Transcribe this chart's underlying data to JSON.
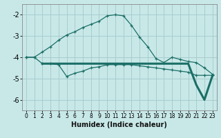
{
  "xlabel": "Humidex (Indice chaleur)",
  "background_color": "#c8e8e8",
  "grid_color": "#a8cccc",
  "line_color": "#1a6e66",
  "x": [
    0,
    1,
    2,
    3,
    4,
    5,
    6,
    7,
    8,
    9,
    10,
    11,
    12,
    13,
    14,
    15,
    16,
    17,
    18,
    19,
    20,
    21,
    22,
    23
  ],
  "line1": [
    -4.0,
    -4.0,
    -3.75,
    -3.5,
    -3.2,
    -2.95,
    -2.8,
    -2.6,
    -2.45,
    -2.3,
    -2.05,
    -2.0,
    -2.05,
    -2.5,
    -3.05,
    -3.5,
    -4.05,
    -4.25,
    -4.0,
    -4.1,
    -4.2,
    -4.25,
    -4.5,
    -4.8
  ],
  "line2": [
    -4.0,
    -4.0,
    -4.3,
    -4.3,
    -4.35,
    -4.9,
    -4.75,
    -4.65,
    -4.5,
    -4.45,
    -4.35,
    -4.35,
    -4.35,
    -4.35,
    -4.4,
    -4.45,
    -4.5,
    -4.55,
    -4.6,
    -4.65,
    -4.7,
    -4.85,
    -4.85,
    -4.85
  ],
  "line3_x": [
    2,
    3,
    4,
    5,
    6,
    7,
    8,
    9,
    10,
    11,
    12,
    13,
    14,
    15,
    16,
    17,
    18,
    19,
    20,
    21,
    22,
    23
  ],
  "line3": [
    -4.3,
    -4.3,
    -4.3,
    -4.3,
    -4.3,
    -4.3,
    -4.3,
    -4.3,
    -4.3,
    -4.3,
    -4.3,
    -4.3,
    -4.3,
    -4.3,
    -4.3,
    -4.3,
    -4.3,
    -4.3,
    -4.3,
    -5.3,
    -6.0,
    -4.85
  ],
  "ylim": [
    -6.5,
    -1.5
  ],
  "yticks": [
    -6,
    -5,
    -4,
    -3,
    -2
  ],
  "xlim": [
    -0.5,
    23.5
  ],
  "xticks": [
    0,
    1,
    2,
    3,
    4,
    5,
    6,
    7,
    8,
    9,
    10,
    11,
    12,
    13,
    14,
    15,
    16,
    17,
    18,
    19,
    20,
    21,
    22,
    23
  ]
}
